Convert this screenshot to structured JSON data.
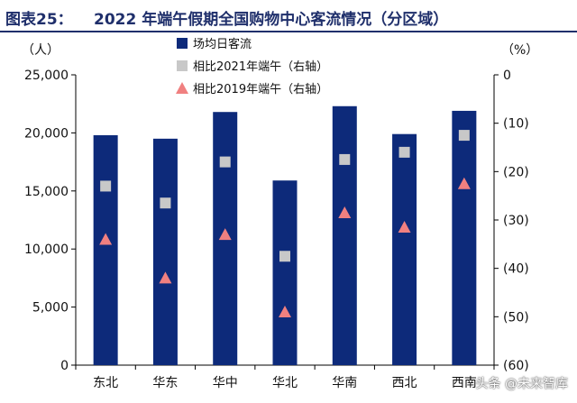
{
  "header": {
    "fig_label": "图表25：",
    "title": "2022 年端午假期全国购物中心客流情况（分区域）"
  },
  "watermark": "头条 @未来智库",
  "chart_data": {
    "type": "bar",
    "categories": [
      "东北",
      "华东",
      "华中",
      "华北",
      "华南",
      "西北",
      "西南"
    ],
    "left_axis": {
      "unit": "（人）",
      "ylim": [
        0,
        25000
      ],
      "ticks": [
        "0",
        "5,000",
        "10,000",
        "15,000",
        "20,000",
        "25,000"
      ]
    },
    "right_axis": {
      "unit": "（%）",
      "ylim": [
        -60,
        0
      ],
      "ticks": [
        "0",
        "(10)",
        "(20)",
        "(30)",
        "(40)",
        "(50)",
        "(60)"
      ]
    },
    "series": [
      {
        "name": "场均日客流",
        "type": "bar",
        "axis": "left",
        "color": "#0d2a7a",
        "values": [
          19800,
          19500,
          21800,
          15900,
          22300,
          19900,
          21900
        ]
      },
      {
        "name": "相比2021年端午（右轴）",
        "type": "marker",
        "marker": "square",
        "axis": "right",
        "color": "#c8c8c8",
        "values": [
          -23,
          -26.5,
          -18,
          -37.5,
          -17.5,
          -16,
          -12.5
        ]
      },
      {
        "name": "相比2019年端午（右轴）",
        "type": "marker",
        "marker": "triangle",
        "axis": "right",
        "color": "#f08080",
        "values": [
          -34,
          -42,
          -33,
          -49,
          -28.5,
          -31.5,
          -22.5
        ]
      }
    ],
    "grid": false,
    "legend": "top-left"
  }
}
